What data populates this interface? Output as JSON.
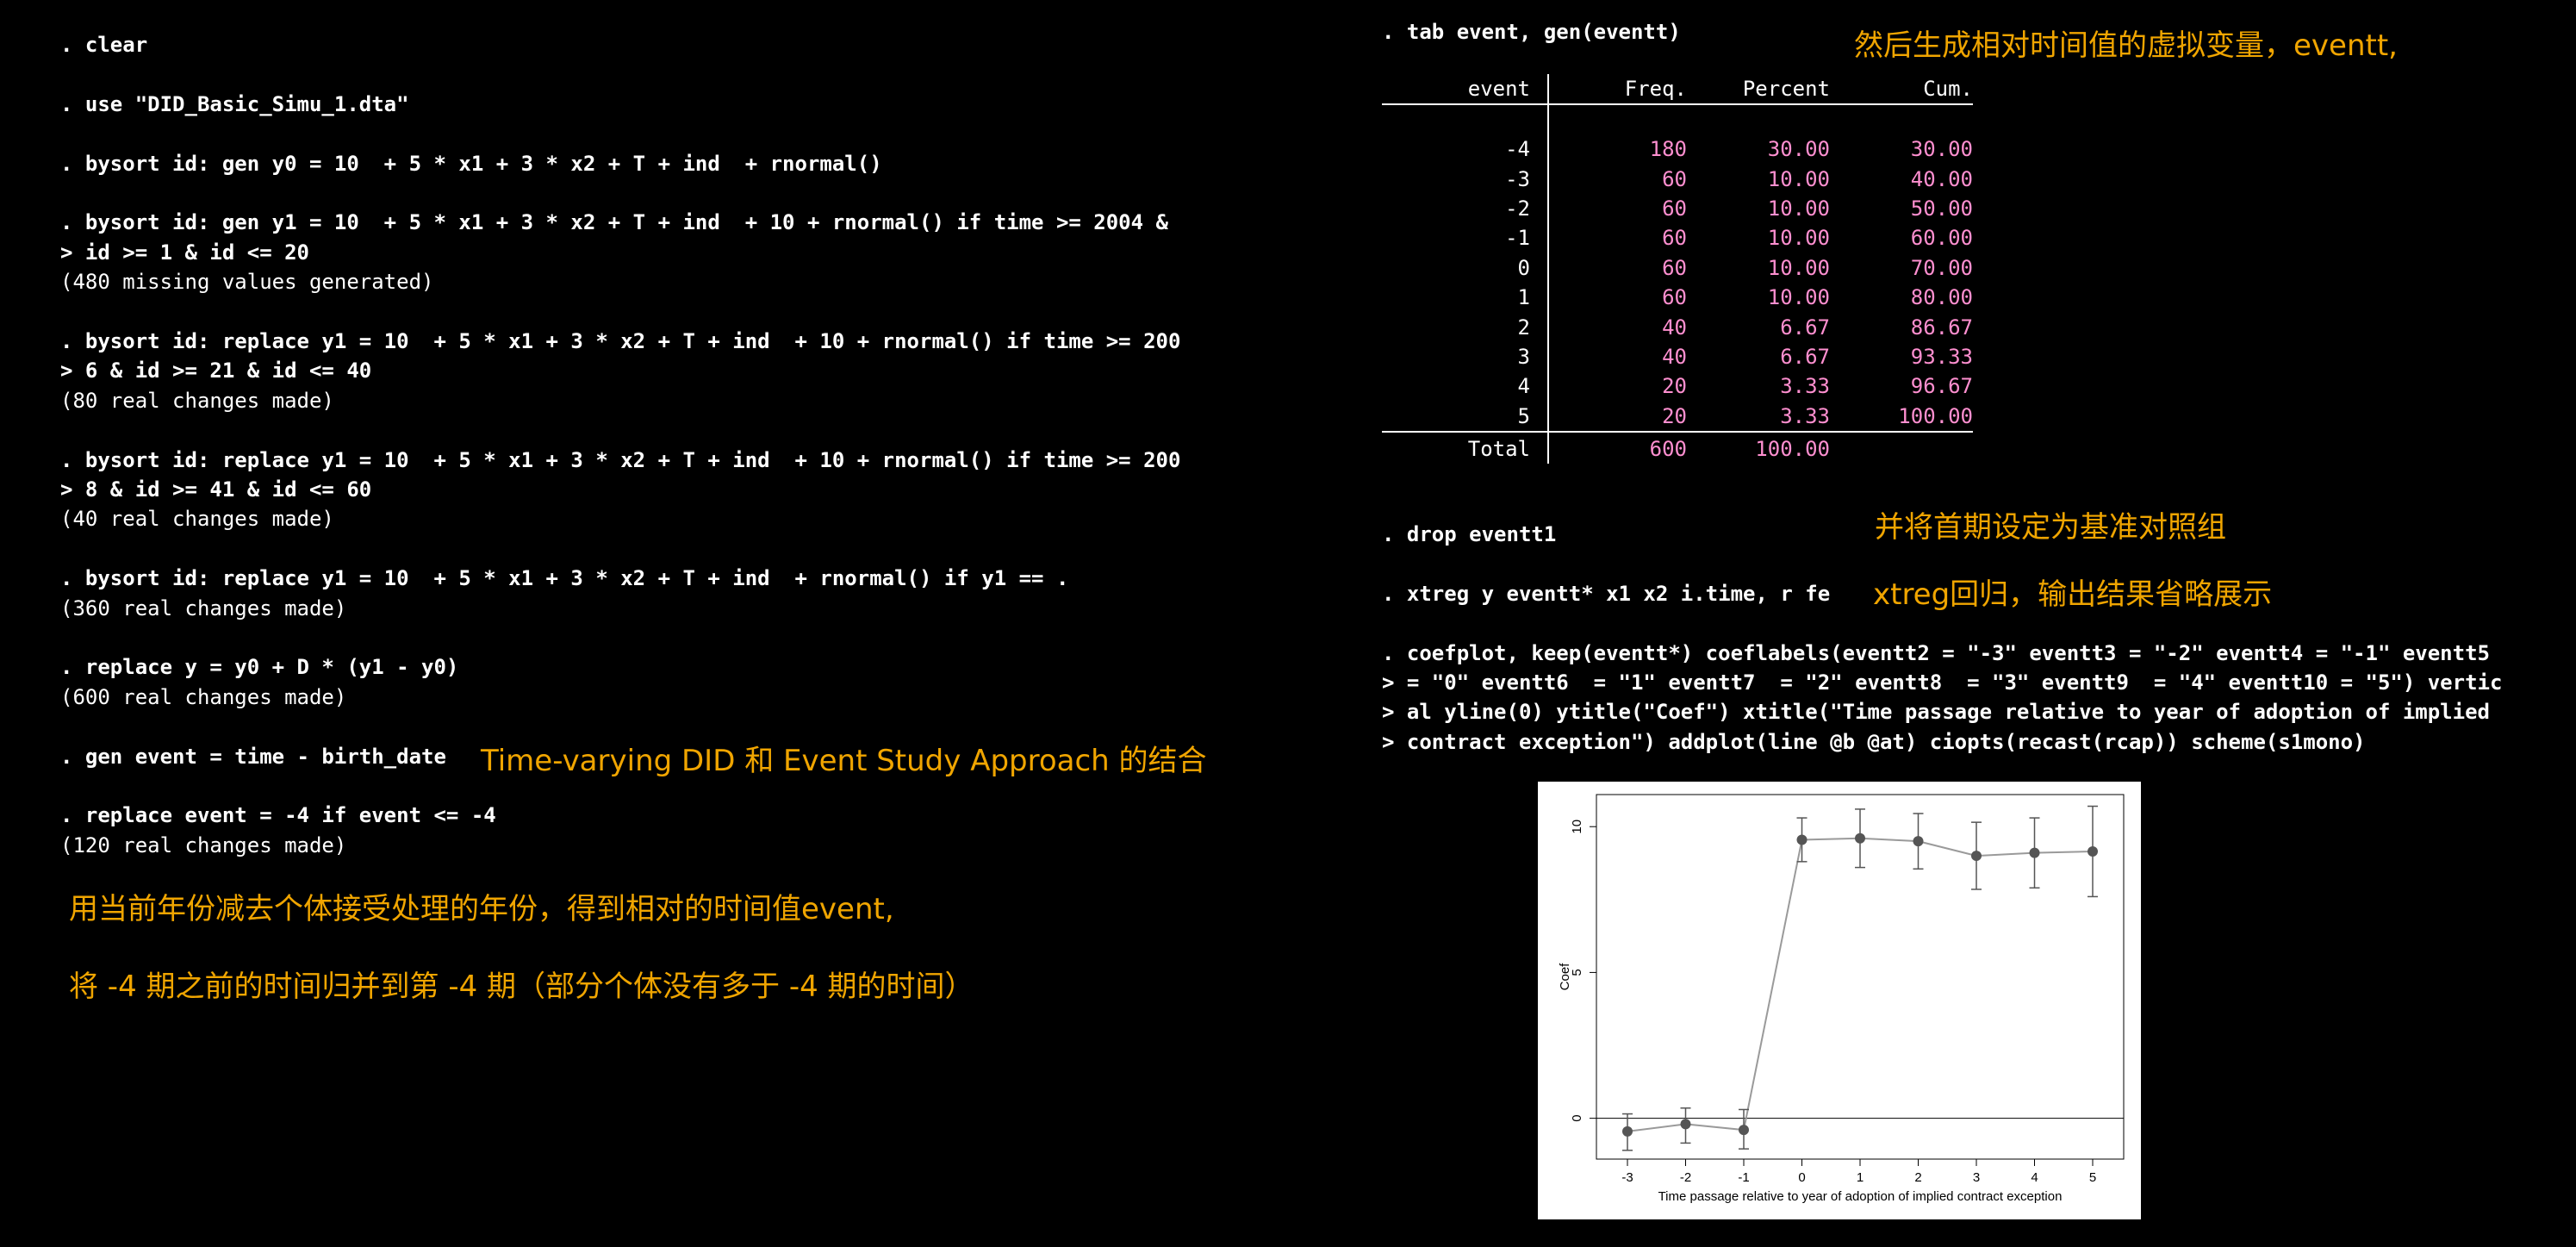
{
  "left_log": [
    {
      "type": "cmd",
      "text": ". clear"
    },
    {
      "type": "gap"
    },
    {
      "type": "cmd",
      "text": ". use \"DID_Basic_Simu_1.dta\""
    },
    {
      "type": "gap"
    },
    {
      "type": "cmd",
      "text": ". bysort id: gen y0 = 10  + 5 * x1 + 3 * x2 + T + ind  + rnormal()"
    },
    {
      "type": "gap"
    },
    {
      "type": "cmd",
      "text": ". bysort id: gen y1 = 10  + 5 * x1 + 3 * x2 + T + ind  + 10 + rnormal() if time >= 2004 &"
    },
    {
      "type": "cmd",
      "text": "> id >= 1 & id <= 20"
    },
    {
      "type": "out",
      "text": "(480 missing values generated)"
    },
    {
      "type": "gap"
    },
    {
      "type": "cmd",
      "text": ". bysort id: replace y1 = 10  + 5 * x1 + 3 * x2 + T + ind  + 10 + rnormal() if time >= 200"
    },
    {
      "type": "cmd",
      "text": "> 6 & id >= 21 & id <= 40"
    },
    {
      "type": "out",
      "text": "(80 real changes made)"
    },
    {
      "type": "gap"
    },
    {
      "type": "cmd",
      "text": ". bysort id: replace y1 = 10  + 5 * x1 + 3 * x2 + T + ind  + 10 + rnormal() if time >= 200"
    },
    {
      "type": "cmd",
      "text": "> 8 & id >= 41 & id <= 60"
    },
    {
      "type": "out",
      "text": "(40 real changes made)"
    },
    {
      "type": "gap"
    },
    {
      "type": "cmd",
      "text": ". bysort id: replace y1 = 10  + 5 * x1 + 3 * x2 + T + ind  + rnormal() if y1 == ."
    },
    {
      "type": "out",
      "text": "(360 real changes made)"
    },
    {
      "type": "gap"
    },
    {
      "type": "cmd",
      "text": ". replace y = y0 + D * (y1 - y0)"
    },
    {
      "type": "out",
      "text": "(600 real changes made)"
    },
    {
      "type": "gap"
    },
    {
      "type": "cmd",
      "text": ". gen event = time - birth_date"
    },
    {
      "type": "gap"
    },
    {
      "type": "cmd",
      "text": ". replace event = -4 if event <= -4"
    },
    {
      "type": "out",
      "text": "(120 real changes made)"
    }
  ],
  "notes": {
    "did_event": "Time-varying DID 和 Event Study Approach 的结合",
    "relative_time": "用当前年份减去个体接受处理的年份，得到相对的时间值event,",
    "merge_periods": "将 -4 期之前的时间归并到第 -4 期（部分个体没有多于 -4 期的时间）",
    "dummies": "然后生成相对时间值的虚拟变量，eventt,",
    "baseline": "并将首期设定为基准对照组",
    "xtreg": "xtreg回归，输出结果省略展示"
  },
  "tab": {
    "command": ". tab event, gen(eventt)",
    "headers": [
      "event",
      "Freq.",
      "Percent",
      "Cum."
    ],
    "rows": [
      [
        "-4",
        "180",
        "30.00",
        "30.00"
      ],
      [
        "-3",
        "60",
        "10.00",
        "40.00"
      ],
      [
        "-2",
        "60",
        "10.00",
        "50.00"
      ],
      [
        "-1",
        "60",
        "10.00",
        "60.00"
      ],
      [
        "0",
        "60",
        "10.00",
        "70.00"
      ],
      [
        "1",
        "60",
        "10.00",
        "80.00"
      ],
      [
        "2",
        "40",
        "6.67",
        "86.67"
      ],
      [
        "3",
        "40",
        "6.67",
        "93.33"
      ],
      [
        "4",
        "20",
        "3.33",
        "96.67"
      ],
      [
        "5",
        "20",
        "3.33",
        "100.00"
      ]
    ],
    "total": [
      "Total",
      "600",
      "100.00",
      ""
    ]
  },
  "right_log": [
    {
      "type": "cmd",
      "text": ". drop eventt1"
    },
    {
      "type": "gap"
    },
    {
      "type": "cmd",
      "text": ". xtreg y eventt* x1 x2 i.time, r fe"
    },
    {
      "type": "gap"
    },
    {
      "type": "cmd",
      "text": ". coefplot, keep(eventt*) coeflabels(eventt2 = \"-3\" eventt3 = \"-2\" eventt4 = \"-1\" eventt5"
    },
    {
      "type": "cmd",
      "text": "> = \"0\" eventt6  = \"1\" eventt7  = \"2\" eventt8  = \"3\" eventt9  = \"4\" eventt10 = \"5\") vertic"
    },
    {
      "type": "cmd",
      "text": "> al yline(0) ytitle(\"Coef\") xtitle(\"Time passage relative to year of adoption of implied"
    },
    {
      "type": "cmd",
      "text": "> contract exception\") addplot(line @b @at) ciopts(recast(rcap)) scheme(s1mono)"
    }
  ],
  "chart_data": {
    "type": "scatter",
    "categories": [
      "-3",
      "-2",
      "-1",
      "0",
      "1",
      "2",
      "3",
      "4",
      "5"
    ],
    "series": [
      {
        "values": [
          -0.45,
          -0.2,
          -0.4,
          9.55,
          9.6,
          9.5,
          9.0,
          9.1,
          9.15
        ],
        "ci_low": [
          -1.1,
          -0.85,
          -1.05,
          8.8,
          8.6,
          8.55,
          7.85,
          7.9,
          7.6
        ],
        "ci_high": [
          0.15,
          0.35,
          0.3,
          10.3,
          10.6,
          10.45,
          10.15,
          10.3,
          10.7
        ]
      }
    ],
    "ylabel": "Coef",
    "xlabel": "Time passage relative to year of adoption of implied contract exception",
    "yticks": [
      "0",
      "5",
      "10"
    ],
    "ylim": [
      -1.4,
      11.1
    ],
    "yline": 0,
    "grid": false,
    "colors": {
      "marker": "#555555",
      "line": "#9a9a9a",
      "ci": "#555555"
    }
  }
}
